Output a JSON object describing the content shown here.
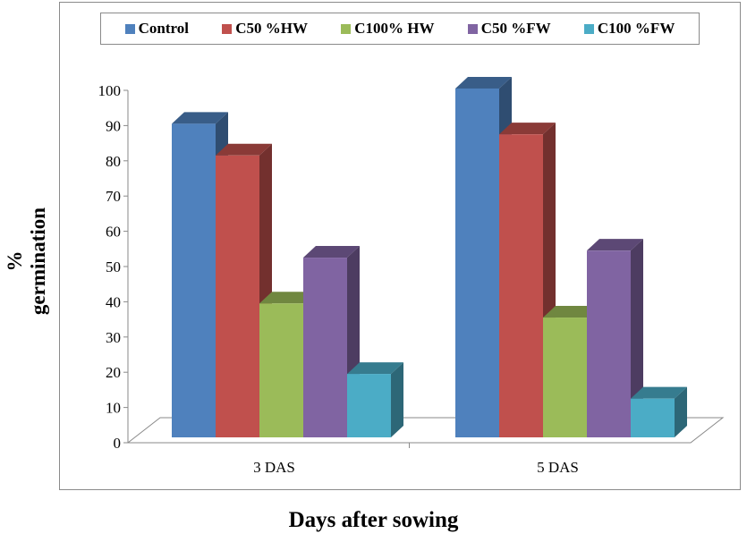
{
  "chart_data": {
    "type": "bar",
    "style": "3d-clustered-column",
    "categories": [
      "3 DAS",
      "5 DAS"
    ],
    "series": [
      {
        "name": "Control",
        "color": "#4f81bd",
        "values": [
          89,
          99
        ]
      },
      {
        "name": "C50 %HW",
        "color": "#c0504d",
        "values": [
          80,
          86
        ]
      },
      {
        "name": "C100% HW",
        "color": "#9bbb59",
        "values": [
          38,
          34
        ]
      },
      {
        "name": "C50 %FW",
        "color": "#8064a2",
        "values": [
          51,
          53
        ]
      },
      {
        "name": "C100 %FW",
        "color": "#4bacc6",
        "values": [
          18,
          11
        ]
      }
    ],
    "title": "",
    "xlabel": "Days after sowing",
    "ylabel": "% germination",
    "ylim": [
      0,
      100
    ],
    "yticks": [
      "0",
      "10",
      "20",
      "30",
      "40",
      "50",
      "60",
      "70",
      "80",
      "90",
      "100"
    ],
    "legend_position": "top",
    "grid": false
  }
}
